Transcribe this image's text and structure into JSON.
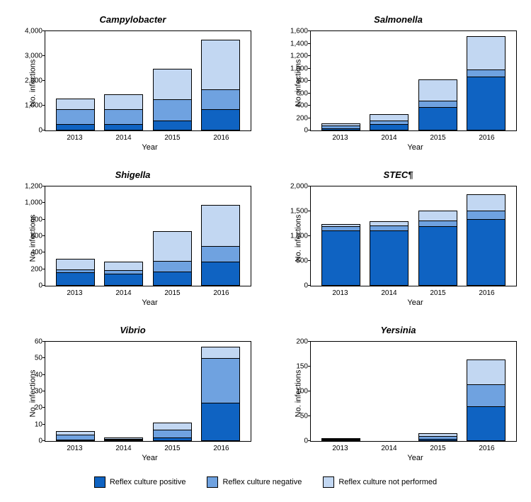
{
  "colors": {
    "positive": "#0f63c2",
    "negative": "#6fa2e0",
    "not_performed": "#c2d7f2",
    "border": "#000000",
    "background": "#ffffff"
  },
  "ylabel": "No. infections",
  "xlabel": "Year",
  "years": [
    "2013",
    "2014",
    "2015",
    "2016"
  ],
  "legend": {
    "positive": "Reflex culture positive",
    "negative": "Reflex culture negative",
    "not_performed": "Reflex culture not performed"
  },
  "panels": [
    {
      "title": "Campylobacter",
      "ymax": 4000,
      "ystep": 1000,
      "data": [
        {
          "pos": 250,
          "neg": 600,
          "np": 450
        },
        {
          "pos": 250,
          "neg": 600,
          "np": 600
        },
        {
          "pos": 400,
          "neg": 850,
          "np": 1250
        },
        {
          "pos": 850,
          "neg": 800,
          "np": 2000
        }
      ]
    },
    {
      "title": "Salmonella",
      "ymax": 1600,
      "ystep": 200,
      "data": [
        {
          "pos": 40,
          "neg": 40,
          "np": 40
        },
        {
          "pos": 100,
          "neg": 60,
          "np": 100
        },
        {
          "pos": 380,
          "neg": 100,
          "np": 340
        },
        {
          "pos": 870,
          "neg": 110,
          "np": 540
        }
      ]
    },
    {
      "title": "Shigella",
      "ymax": 1200,
      "ystep": 200,
      "data": [
        {
          "pos": 160,
          "neg": 40,
          "np": 130
        },
        {
          "pos": 150,
          "neg": 40,
          "np": 100
        },
        {
          "pos": 170,
          "neg": 130,
          "np": 360
        },
        {
          "pos": 290,
          "neg": 190,
          "np": 500
        }
      ]
    },
    {
      "title": "STEC¶",
      "ymax": 2000,
      "ystep": 500,
      "data": [
        {
          "pos": 1120,
          "neg": 80,
          "np": 50
        },
        {
          "pos": 1120,
          "neg": 100,
          "np": 80
        },
        {
          "pos": 1200,
          "neg": 120,
          "np": 200
        },
        {
          "pos": 1350,
          "neg": 170,
          "np": 330
        }
      ]
    },
    {
      "title": "Vibrio",
      "ymax": 60,
      "ystep": 10,
      "data": [
        {
          "pos": 1,
          "neg": 3,
          "np": 2
        },
        {
          "pos": 0.5,
          "neg": 0.5,
          "np": 1
        },
        {
          "pos": 2,
          "neg": 5,
          "np": 4
        },
        {
          "pos": 23,
          "neg": 27,
          "np": 7
        }
      ]
    },
    {
      "title": "Yersinia",
      "ymax": 200,
      "ystep": 50,
      "data": [
        {
          "pos": 1.5,
          "neg": 1.5,
          "np": 1
        },
        {
          "pos": 0.7,
          "neg": 0.7,
          "np": 0.6
        },
        {
          "pos": 5,
          "neg": 5,
          "np": 6
        },
        {
          "pos": 70,
          "neg": 45,
          "np": 50
        }
      ]
    }
  ]
}
